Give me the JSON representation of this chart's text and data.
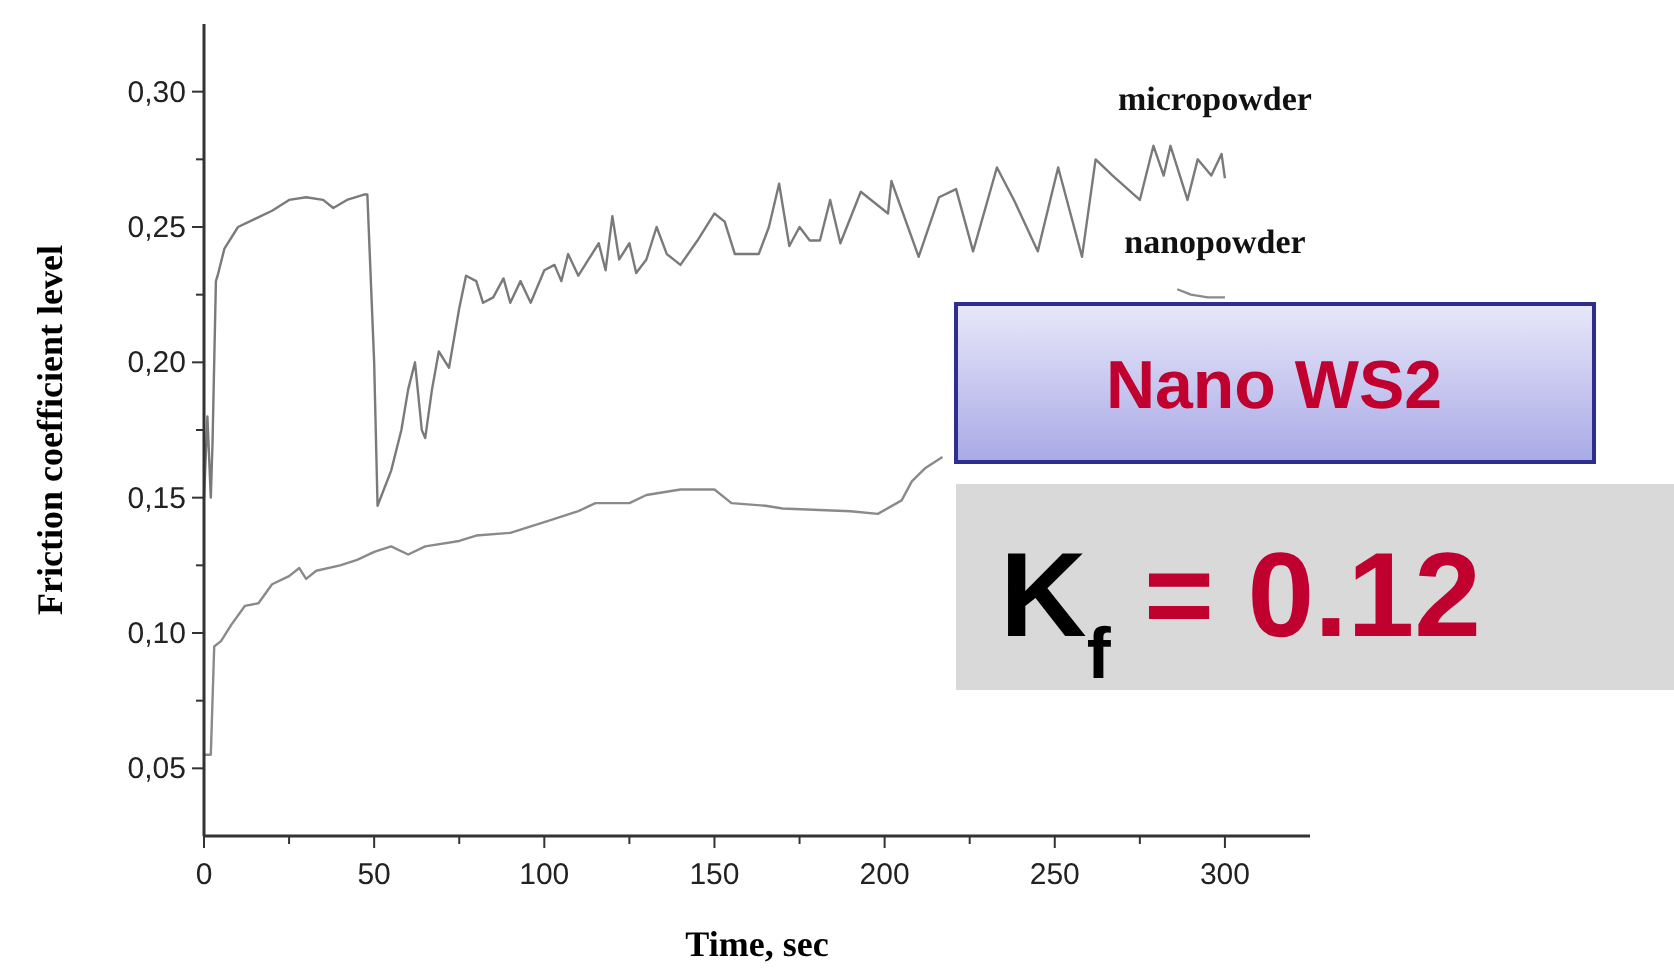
{
  "chart_data": {
    "type": "line",
    "xlabel": "Time, sec",
    "ylabel": "Friction coefficient level",
    "xlim": [
      0,
      325
    ],
    "ylim": [
      0.025,
      0.325
    ],
    "xticks": [
      0,
      {
        "value": 25,
        "label": null
      },
      50,
      {
        "value": 75,
        "label": null
      },
      100,
      {
        "value": 125,
        "label": null
      },
      150,
      {
        "value": 175,
        "label": null
      },
      200,
      {
        "value": 225,
        "label": null
      },
      250,
      {
        "value": 275,
        "label": null
      },
      300
    ],
    "yticks": [
      {
        "value": 0.05,
        "label": "0,05"
      },
      {
        "value": 0.075,
        "label": null
      },
      {
        "value": 0.1,
        "label": "0,10"
      },
      {
        "value": 0.125,
        "label": null
      },
      {
        "value": 0.15,
        "label": "0,15"
      },
      {
        "value": 0.175,
        "label": null
      },
      {
        "value": 0.2,
        "label": "0,20"
      },
      {
        "value": 0.225,
        "label": null
      },
      {
        "value": 0.25,
        "label": "0,25"
      },
      {
        "value": 0.275,
        "label": null
      },
      {
        "value": 0.3,
        "label": "0,30"
      }
    ],
    "grid": false,
    "legend": false,
    "marker": "none",
    "line_style": "solid",
    "annotations": [
      "Nano WS2",
      "K$_{f}$ = 0.12"
    ],
    "series": [
      {
        "name": "micropowder",
        "color": "#7a7a7a",
        "x": [
          0,
          1,
          2,
          2.5,
          3.5,
          4,
          6,
          10,
          15,
          20,
          25,
          30,
          35,
          38,
          42,
          47,
          48,
          50,
          51,
          55,
          58,
          60,
          62,
          64,
          65,
          67,
          69,
          71,
          72,
          75,
          77,
          80,
          82,
          85,
          88,
          90,
          93,
          96,
          100,
          103,
          105,
          107,
          110,
          113,
          116,
          118,
          120,
          122,
          125,
          127,
          130,
          133,
          136,
          140,
          145,
          150,
          153,
          156,
          160,
          163,
          166,
          169,
          172,
          175,
          178,
          181,
          184,
          187,
          193,
          201,
          202,
          210,
          216,
          221,
          226,
          233,
          238,
          245,
          251,
          258,
          262,
          267,
          275,
          279,
          282,
          284,
          289,
          292,
          296,
          299,
          300
        ],
        "values": [
          0.15,
          0.18,
          0.15,
          0.17,
          0.23,
          0.232,
          0.242,
          0.25,
          0.253,
          0.256,
          0.26,
          0.261,
          0.26,
          0.257,
          0.26,
          0.262,
          0.262,
          0.2,
          0.147,
          0.16,
          0.175,
          0.19,
          0.2,
          0.175,
          0.172,
          0.19,
          0.204,
          0.2,
          0.198,
          0.22,
          0.232,
          0.23,
          0.222,
          0.224,
          0.231,
          0.222,
          0.23,
          0.222,
          0.234,
          0.236,
          0.23,
          0.24,
          0.232,
          0.238,
          0.244,
          0.234,
          0.254,
          0.238,
          0.244,
          0.233,
          0.238,
          0.25,
          0.24,
          0.236,
          0.245,
          0.255,
          0.252,
          0.24,
          0.24,
          0.24,
          0.25,
          0.266,
          0.243,
          0.25,
          0.245,
          0.245,
          0.26,
          0.244,
          0.263,
          0.255,
          0.267,
          0.239,
          0.261,
          0.264,
          0.241,
          0.272,
          0.26,
          0.241,
          0.272,
          0.239,
          0.275,
          0.269,
          0.26,
          0.28,
          0.269,
          0.28,
          0.26,
          0.275,
          0.269,
          0.277,
          0.268
        ]
      },
      {
        "name": "nanopowder",
        "color": "#8a8a8a",
        "x": [
          0,
          2,
          3,
          5,
          8,
          12,
          16,
          20,
          25,
          28,
          30,
          33,
          40,
          45,
          50,
          55,
          60,
          65,
          75,
          80,
          90,
          100,
          110,
          115,
          125,
          130,
          140,
          150,
          155,
          165,
          170,
          190,
          198,
          205,
          208,
          212,
          217,
          250,
          286,
          290,
          295,
          300
        ],
        "values": [
          0.055,
          0.055,
          0.095,
          0.097,
          0.103,
          0.11,
          0.111,
          0.118,
          0.121,
          0.124,
          0.12,
          0.123,
          0.125,
          0.127,
          0.13,
          0.132,
          0.129,
          0.132,
          0.134,
          0.136,
          0.137,
          0.141,
          0.145,
          0.148,
          0.148,
          0.151,
          0.153,
          0.153,
          0.148,
          0.147,
          0.146,
          0.145,
          0.144,
          0.149,
          0.156,
          0.161,
          0.165,
          null,
          0.227,
          0.225,
          0.224,
          0.224
        ]
      }
    ]
  }
}
